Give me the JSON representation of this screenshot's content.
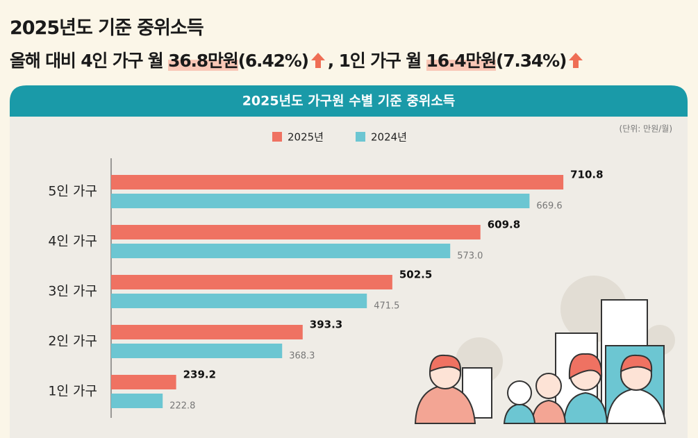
{
  "header": {
    "title": "2025년도 기준 중위소득",
    "headline": [
      "올해 대비 4인 가구 월 ",
      "36.8만원",
      "(6.42%)",
      ", 1인 가구 월 ",
      "16.4만원",
      "(7.34%)"
    ]
  },
  "chart_data": {
    "type": "bar",
    "orientation": "horizontal",
    "title": "2025년도 가구원 수별 기준 중위소득",
    "unit": "(단위: 만원/월)",
    "categories": [
      "5인 가구",
      "4인 가구",
      "3인 가구",
      "2인 가구",
      "1인 가구"
    ],
    "series": [
      {
        "name": "2025년",
        "color": "#ef7262",
        "values": [
          710.8,
          609.8,
          502.5,
          393.3,
          239.2
        ],
        "value_labels": [
          "710.8",
          "609.8",
          "502.5",
          "393.3",
          "239.2"
        ]
      },
      {
        "name": "2024년",
        "color": "#6cc6d2",
        "values": [
          669.6,
          573.0,
          471.5,
          368.3,
          222.8
        ],
        "value_labels": [
          "669.6",
          "573.0",
          "471.5",
          "368.3",
          "222.8"
        ]
      }
    ],
    "xlim": [
      160,
      720
    ],
    "legend": "top"
  }
}
